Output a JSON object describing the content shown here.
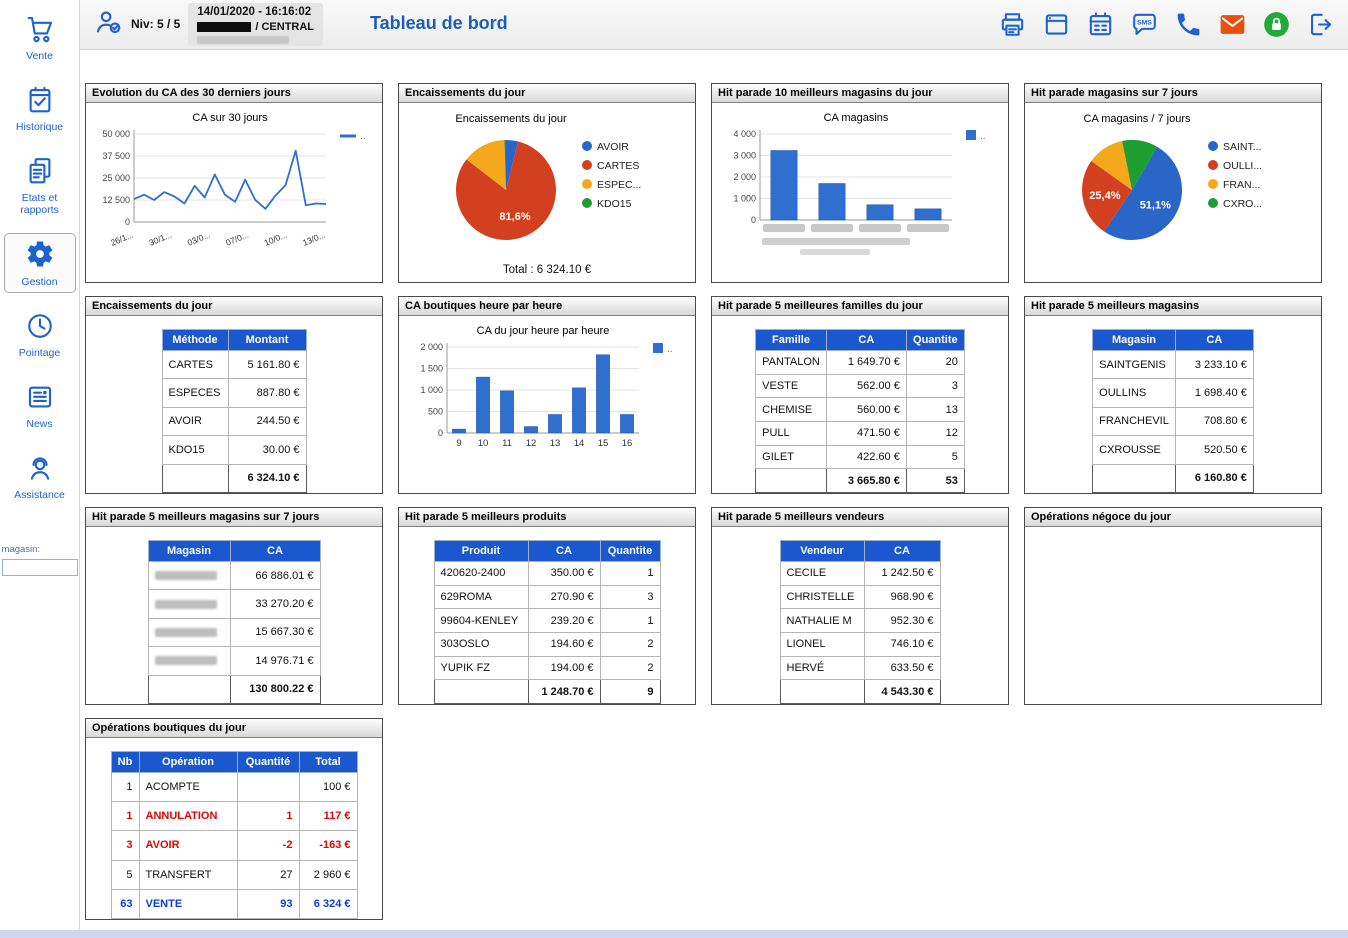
{
  "colors": {
    "accent_blue": "#1e62d0",
    "table_header_blue": "#1b57cf",
    "chart_blue": "#2f6fd0",
    "pie_red": "#d2401f",
    "pie_orange": "#f5a81c",
    "pie_green": "#1e9e30",
    "title_blue": "#1a5fb4",
    "mail_orange": "#e8500e",
    "lock_green": "#22a93c"
  },
  "sidebar": {
    "items": [
      {
        "label": "Vente",
        "icon": "cart-icon"
      },
      {
        "label": "Historique",
        "icon": "history-icon"
      },
      {
        "label": "Etats et rapports",
        "icon": "reports-icon"
      },
      {
        "label": "Gestion",
        "icon": "gear-icon",
        "selected": true
      },
      {
        "label": "Pointage",
        "icon": "clock-icon"
      },
      {
        "label": "News",
        "icon": "news-icon"
      },
      {
        "label": "Assistance",
        "icon": "assistance-icon"
      }
    ],
    "magasin_label": "magasin:",
    "magasin_value": ""
  },
  "header": {
    "niv": "Niv: 5 / 5",
    "datetime": "14/01/2020 - 16:16:02",
    "location_suffix": "/ CENTRAL",
    "title": "Tableau de bord",
    "icons": [
      {
        "name": "printer-icon"
      },
      {
        "name": "window-icon"
      },
      {
        "name": "calendar-icon"
      },
      {
        "name": "sms-icon",
        "text": "SMS"
      },
      {
        "name": "phone-icon"
      },
      {
        "name": "mail-icon"
      },
      {
        "name": "lock-icon"
      },
      {
        "name": "logout-icon"
      }
    ]
  },
  "panels": {
    "evolution": {
      "title": "Evolution du CA des 30 derniers jours",
      "chart": {
        "type": "line",
        "title": "CA sur 30 jours",
        "color": "#2f6fd0",
        "y_max": 50000,
        "y_ticks": [
          "0",
          "12 500",
          "25 000",
          "37 500",
          "50 000"
        ],
        "x_labels": [
          "26/1...",
          "30/1...",
          "03/0...",
          "07/0...",
          "10/0...",
          "13/0..."
        ],
        "values": [
          13000,
          15500,
          12500,
          17000,
          14500,
          10500,
          20500,
          14000,
          27000,
          15500,
          11500,
          24000,
          12500,
          7500,
          15000,
          21000,
          40500,
          9500,
          10500,
          10200
        ],
        "legend": ".."
      }
    },
    "enc_pie": {
      "title": "Encaissements du jour",
      "total": "Total : 6 324.10 €",
      "chart": {
        "type": "pie",
        "title": "Encaissements du jour",
        "start_deg": 0,
        "slices": [
          {
            "label": "AVOIR",
            "value": 3.9,
            "color": "#2a66c8"
          },
          {
            "label": "CARTES",
            "value": 81.6,
            "color": "#d2401f",
            "pct_label": "81,6%"
          },
          {
            "label": "ESPEC...",
            "value": 14.0,
            "color": "#f5a81c"
          },
          {
            "label": "KDO15",
            "value": 0.5,
            "color": "#1e9e30"
          }
        ]
      }
    },
    "hit10": {
      "title": "Hit parade 10 meilleurs magasins du jour",
      "chart": {
        "type": "bar",
        "title": "CA magasins",
        "color": "#2f6fd0",
        "y_max": 4000,
        "y_ticks": [
          "0",
          "1 000",
          "2 000",
          "3 000",
          "4 000"
        ],
        "categories": [
          "",
          "",
          "",
          ""
        ],
        "x_redacted": true,
        "values": [
          3233,
          1698,
          709,
          520
        ],
        "legend": ".."
      }
    },
    "hit7": {
      "title": "Hit parade magasins sur 7 jours",
      "chart": {
        "type": "pie",
        "title": "CA magasins / 7 jours",
        "start_deg": 30,
        "slices": [
          {
            "label": "SAINT...",
            "value": 51.1,
            "color": "#2a66c8",
            "pct_label": "51,1%"
          },
          {
            "label": "OULLI...",
            "value": 25.4,
            "color": "#d2401f",
            "pct_label": "25,4%"
          },
          {
            "label": "FRAN...",
            "value": 12.0,
            "color": "#f5a81c"
          },
          {
            "label": "CXRO...",
            "value": 11.5,
            "color": "#1e9e30"
          }
        ]
      }
    },
    "enc_table": {
      "title": "Encaissements du jour",
      "table": {
        "headers": [
          "Méthode",
          "Montant"
        ],
        "widths": [
          66,
          78
        ],
        "align": [
          "left",
          "right"
        ],
        "rows": [
          [
            "CARTES",
            "5 161.80 €"
          ],
          [
            "ESPECES",
            "887.80 €"
          ],
          [
            "AVOIR",
            "244.50 €"
          ],
          [
            "KDO15",
            "30.00 €"
          ]
        ],
        "total_row": [
          "",
          "6 324.10 €"
        ]
      }
    },
    "heure": {
      "title": "CA boutiques heure par heure",
      "chart": {
        "type": "bar",
        "title": "CA du jour heure par heure",
        "color": "#2f6fd0",
        "y_max": 2000,
        "y_ticks": [
          "0",
          "500",
          "1 000",
          "1 500",
          "2 000"
        ],
        "categories": [
          "9",
          "10",
          "11",
          "12",
          "13",
          "14",
          "15",
          "16"
        ],
        "values": [
          90,
          1300,
          980,
          150,
          430,
          1050,
          1820,
          430
        ],
        "legend": ".."
      }
    },
    "familles": {
      "title": "Hit parade 5 meilleures familles du jour",
      "table": {
        "headers": [
          "Famille",
          "CA",
          "Quantite"
        ],
        "widths": [
          66,
          80,
          58
        ],
        "align": [
          "left",
          "right",
          "right"
        ],
        "rows": [
          [
            "PANTALON",
            "1 649.70 €",
            "20"
          ],
          [
            "VESTE",
            "562.00 €",
            "3"
          ],
          [
            "CHEMISE",
            "560.00 €",
            "13"
          ],
          [
            "PULL",
            "471.50 €",
            "12"
          ],
          [
            "GILET",
            "422.60 €",
            "5"
          ]
        ],
        "total_row": [
          "",
          "3 665.80 €",
          "53"
        ]
      }
    },
    "magasins": {
      "title": "Hit parade 5 meilleurs magasins",
      "table": {
        "headers": [
          "Magasin",
          "CA"
        ],
        "widths": [
          82,
          78
        ],
        "align": [
          "left",
          "right"
        ],
        "rows": [
          [
            "SAINTGENIS",
            "3 233.10 €"
          ],
          [
            "OULLINS",
            "1 698.40 €"
          ],
          [
            "FRANCHEVIL",
            "708.80 €"
          ],
          [
            "CXROUSSE",
            "520.50 €"
          ]
        ],
        "total_row": [
          "",
          "6 160.80 €"
        ]
      }
    },
    "magasins7": {
      "title": "Hit parade 5 meilleurs magasins sur 7 jours",
      "table": {
        "headers": [
          "Magasin",
          "CA"
        ],
        "widths": [
          82,
          90
        ],
        "align": [
          "left",
          "right"
        ],
        "redact_col": 0,
        "rows": [
          [
            "",
            "66 886.01 €"
          ],
          [
            "",
            "33 270.20 €"
          ],
          [
            "",
            "15 667.30 €"
          ],
          [
            "",
            "14 976.71 €"
          ]
        ],
        "total_row": [
          "",
          "130 800.22 €"
        ]
      }
    },
    "produits": {
      "title": "Hit parade 5 meilleurs produits",
      "table": {
        "headers": [
          "Produit",
          "CA",
          "Quantite"
        ],
        "widths": [
          94,
          72,
          60
        ],
        "align": [
          "left",
          "right",
          "right"
        ],
        "rows": [
          [
            "420620-2400",
            "350.00 €",
            "1"
          ],
          [
            "629ROMA",
            "270.90 €",
            "3"
          ],
          [
            "99604-KENLEY",
            "239.20 €",
            "1"
          ],
          [
            "303OSLO",
            "194.60 €",
            "2"
          ],
          [
            "YUPIK FZ",
            "194.00 €",
            "2"
          ]
        ],
        "total_row": [
          "",
          "1 248.70 €",
          "9"
        ]
      }
    },
    "vendeurs": {
      "title": "Hit parade 5 meilleurs vendeurs",
      "table": {
        "headers": [
          "Vendeur",
          "CA"
        ],
        "widths": [
          84,
          76
        ],
        "align": [
          "left",
          "right"
        ],
        "rows": [
          [
            "CECILE",
            "1 242.50 €"
          ],
          [
            "CHRISTELLE",
            "968.90 €"
          ],
          [
            "NATHALIE M",
            "952.30 €"
          ],
          [
            "LIONEL",
            "746.10 €"
          ],
          [
            "HERVÉ",
            "633.50 €"
          ]
        ],
        "total_row": [
          "",
          "4 543.30 €"
        ]
      }
    },
    "negoce": {
      "title": "Opérations négoce du jour"
    },
    "operations": {
      "title": "Opérations boutiques du jour",
      "table": {
        "headers": [
          "Nb",
          "Opération",
          "Quantité",
          "Total"
        ],
        "widths": [
          28,
          98,
          62,
          58
        ],
        "align": [
          "right",
          "left",
          "right",
          "right"
        ],
        "rows": [
          {
            "cells": [
              "1",
              "ACOMPTE",
              "",
              "100 €"
            ],
            "style": "normal"
          },
          {
            "cells": [
              "1",
              "ANNULATION",
              "1",
              "117 €"
            ],
            "style": "red"
          },
          {
            "cells": [
              "3",
              "AVOIR",
              "-2",
              "-163 €"
            ],
            "style": "red"
          },
          {
            "cells": [
              "5",
              "TRANSFERT",
              "27",
              "2 960 €"
            ],
            "style": "normal"
          },
          {
            "cells": [
              "63",
              "VENTE",
              "93",
              "6 324 €"
            ],
            "style": "blue"
          }
        ]
      }
    }
  }
}
